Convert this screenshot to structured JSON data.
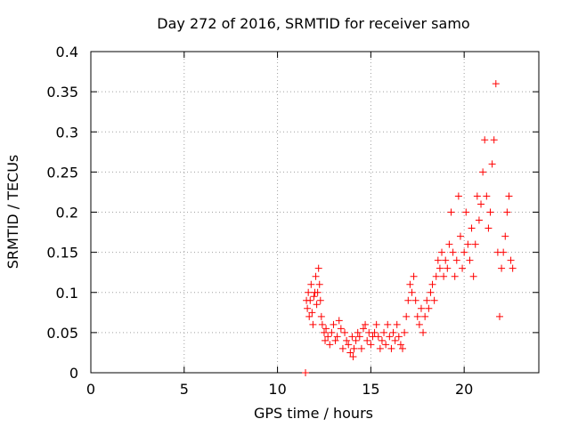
{
  "chart_data": {
    "type": "scatter",
    "title": "Day 272 of 2016, SRMTID for receiver samo",
    "xlabel": "GPS time / hours",
    "ylabel": "SRMTID / TECUs",
    "xlim": [
      0,
      24
    ],
    "ylim": [
      0,
      0.4
    ],
    "grid": true,
    "marker": "+",
    "marker_color": "#ff0000",
    "x_ticks": [
      0,
      5,
      10,
      15,
      20
    ],
    "x_tick_labels": [
      "0",
      "5",
      "10",
      "15",
      "20"
    ],
    "y_ticks": [
      0,
      0.05,
      0.1,
      0.15,
      0.2,
      0.25,
      0.3,
      0.35,
      0.4
    ],
    "y_tick_labels": [
      "0",
      "0.05",
      "0.1",
      "0.15",
      "0.2",
      "0.25",
      "0.3",
      "0.35",
      "0.4"
    ],
    "series": [
      {
        "name": "SRMTID",
        "points": [
          [
            11.5,
            0.0
          ],
          [
            11.55,
            0.09
          ],
          [
            11.6,
            0.08
          ],
          [
            11.65,
            0.1
          ],
          [
            11.7,
            0.07
          ],
          [
            11.75,
            0.09
          ],
          [
            11.8,
            0.11
          ],
          [
            11.85,
            0.075
          ],
          [
            11.9,
            0.06
          ],
          [
            11.95,
            0.095
          ],
          [
            12.0,
            0.1
          ],
          [
            12.05,
            0.12
          ],
          [
            12.1,
            0.085
          ],
          [
            12.15,
            0.1
          ],
          [
            12.2,
            0.13
          ],
          [
            12.25,
            0.11
          ],
          [
            12.3,
            0.09
          ],
          [
            12.35,
            0.07
          ],
          [
            12.4,
            0.06
          ],
          [
            12.5,
            0.05
          ],
          [
            12.55,
            0.04
          ],
          [
            12.6,
            0.055
          ],
          [
            12.7,
            0.045
          ],
          [
            12.8,
            0.035
          ],
          [
            12.9,
            0.05
          ],
          [
            13.0,
            0.06
          ],
          [
            13.1,
            0.04
          ],
          [
            13.2,
            0.045
          ],
          [
            13.3,
            0.065
          ],
          [
            13.4,
            0.055
          ],
          [
            13.5,
            0.03
          ],
          [
            13.6,
            0.05
          ],
          [
            13.7,
            0.04
          ],
          [
            13.8,
            0.035
          ],
          [
            13.9,
            0.025
          ],
          [
            14.0,
            0.045
          ],
          [
            14.05,
            0.02
          ],
          [
            14.1,
            0.03
          ],
          [
            14.2,
            0.04
          ],
          [
            14.3,
            0.05
          ],
          [
            14.4,
            0.045
          ],
          [
            14.5,
            0.03
          ],
          [
            14.6,
            0.055
          ],
          [
            14.7,
            0.06
          ],
          [
            14.8,
            0.04
          ],
          [
            14.9,
            0.05
          ],
          [
            15.0,
            0.035
          ],
          [
            15.1,
            0.045
          ],
          [
            15.2,
            0.05
          ],
          [
            15.3,
            0.06
          ],
          [
            15.4,
            0.045
          ],
          [
            15.5,
            0.03
          ],
          [
            15.6,
            0.04
          ],
          [
            15.7,
            0.05
          ],
          [
            15.8,
            0.035
          ],
          [
            15.9,
            0.06
          ],
          [
            16.0,
            0.045
          ],
          [
            16.1,
            0.03
          ],
          [
            16.2,
            0.05
          ],
          [
            16.3,
            0.04
          ],
          [
            16.4,
            0.06
          ],
          [
            16.5,
            0.045
          ],
          [
            16.6,
            0.035
          ],
          [
            16.7,
            0.03
          ],
          [
            16.8,
            0.05
          ],
          [
            16.9,
            0.07
          ],
          [
            17.0,
            0.09
          ],
          [
            17.1,
            0.11
          ],
          [
            17.2,
            0.1
          ],
          [
            17.3,
            0.12
          ],
          [
            17.4,
            0.09
          ],
          [
            17.5,
            0.07
          ],
          [
            17.6,
            0.06
          ],
          [
            17.7,
            0.08
          ],
          [
            17.8,
            0.05
          ],
          [
            17.9,
            0.07
          ],
          [
            18.0,
            0.09
          ],
          [
            18.1,
            0.08
          ],
          [
            18.2,
            0.1
          ],
          [
            18.3,
            0.11
          ],
          [
            18.4,
            0.09
          ],
          [
            18.5,
            0.12
          ],
          [
            18.6,
            0.14
          ],
          [
            18.7,
            0.13
          ],
          [
            18.8,
            0.15
          ],
          [
            18.9,
            0.12
          ],
          [
            19.0,
            0.14
          ],
          [
            19.1,
            0.13
          ],
          [
            19.2,
            0.16
          ],
          [
            19.3,
            0.2
          ],
          [
            19.4,
            0.15
          ],
          [
            19.5,
            0.12
          ],
          [
            19.6,
            0.14
          ],
          [
            19.7,
            0.22
          ],
          [
            19.8,
            0.17
          ],
          [
            19.9,
            0.13
          ],
          [
            20.0,
            0.15
          ],
          [
            20.1,
            0.2
          ],
          [
            20.2,
            0.16
          ],
          [
            20.3,
            0.14
          ],
          [
            20.4,
            0.18
          ],
          [
            20.5,
            0.12
          ],
          [
            20.6,
            0.16
          ],
          [
            20.7,
            0.22
          ],
          [
            20.8,
            0.19
          ],
          [
            20.9,
            0.21
          ],
          [
            21.0,
            0.25
          ],
          [
            21.1,
            0.29
          ],
          [
            21.2,
            0.22
          ],
          [
            21.3,
            0.18
          ],
          [
            21.4,
            0.2
          ],
          [
            21.5,
            0.26
          ],
          [
            21.6,
            0.29
          ],
          [
            21.7,
            0.36
          ],
          [
            21.8,
            0.15
          ],
          [
            21.9,
            0.07
          ],
          [
            22.0,
            0.13
          ],
          [
            22.1,
            0.15
          ],
          [
            22.2,
            0.17
          ],
          [
            22.3,
            0.2
          ],
          [
            22.4,
            0.22
          ],
          [
            22.5,
            0.14
          ],
          [
            22.6,
            0.13
          ]
        ]
      }
    ]
  }
}
